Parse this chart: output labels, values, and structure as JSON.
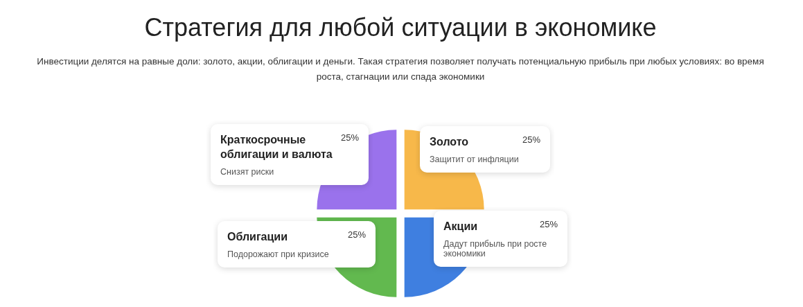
{
  "chart_data": {
    "type": "pie",
    "title": "Стратегия для любой ситуации в экономике",
    "subtitle": "Инвестиции делятся на равные доли: золото, акции, облигации и деньги. Такая стратегия позволяет получать потенциальную прибыль при любых условиях: во время роста, стагнации или спада экономики",
    "categories": [
      "Золото",
      "Акции",
      "Облигации",
      "Краткосрочные облигации и валюта"
    ],
    "values": [
      25,
      25,
      25,
      25
    ],
    "colors": [
      "#f7b84a",
      "#3f7fe0",
      "#62b94f",
      "#9a72ec"
    ],
    "value_labels": [
      "25%",
      "25%",
      "25%",
      "25%"
    ],
    "annotations": [
      "Защитит от инфляции",
      "Дадут прибыль при росте экономики",
      "Подорожают при кризисе",
      "Снизят риски"
    ]
  }
}
